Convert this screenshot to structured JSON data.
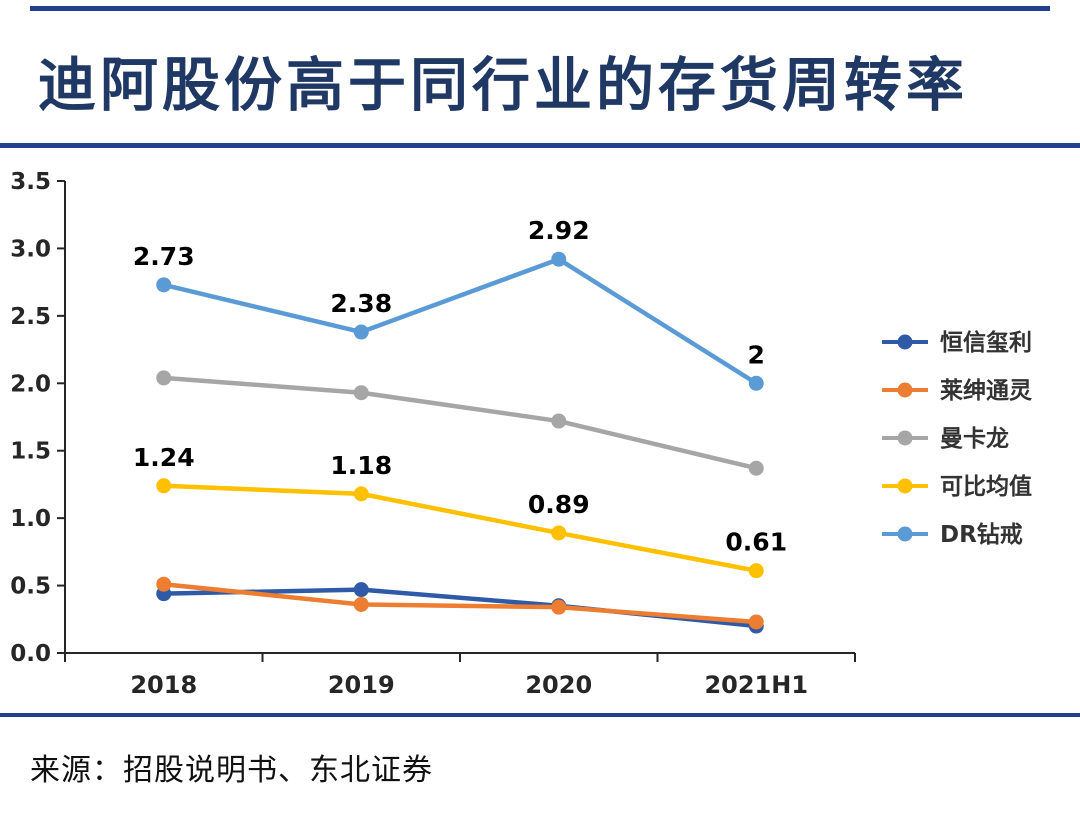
{
  "page": {
    "title": "迪阿股份高于同行业的存货周转率",
    "source": "来源：招股说明书、东北证券"
  },
  "colors": {
    "title": "#1F3864",
    "divider": "#22418C",
    "axis": "#262626",
    "data_label": "#000000",
    "legend_text": "#333333"
  },
  "chart_data": {
    "type": "line",
    "title": "迪阿股份高于同行业的存货周转率",
    "categories": [
      "2018",
      "2019",
      "2020",
      "2021H1"
    ],
    "yticks": [
      "0.0",
      "0.5",
      "1.0",
      "1.5",
      "2.0",
      "2.5",
      "3.0",
      "3.5"
    ],
    "ylim": [
      0,
      3.5
    ],
    "grid": false,
    "legend_position": "right",
    "series": [
      {
        "name": "恒信玺利",
        "color": "#2E5AA7",
        "values": [
          0.44,
          0.47,
          0.35,
          0.2
        ],
        "labels": null
      },
      {
        "name": "莱绅通灵",
        "color": "#ED7D31",
        "values": [
          0.51,
          0.36,
          0.34,
          0.23
        ],
        "labels": null
      },
      {
        "name": "曼卡龙",
        "color": "#A6A6A6",
        "values": [
          2.04,
          1.93,
          1.72,
          1.37
        ],
        "labels": null
      },
      {
        "name": "可比均值",
        "color": "#FFC000",
        "values": [
          1.24,
          1.18,
          0.89,
          0.61
        ],
        "labels": [
          "1.24",
          "1.18",
          "0.89",
          "0.61"
        ]
      },
      {
        "name": "DR钻戒",
        "color": "#5B9BD5",
        "values": [
          2.73,
          2.38,
          2.92,
          2.0
        ],
        "labels": [
          "2.73",
          "2.38",
          "2.92",
          "2"
        ]
      }
    ]
  }
}
